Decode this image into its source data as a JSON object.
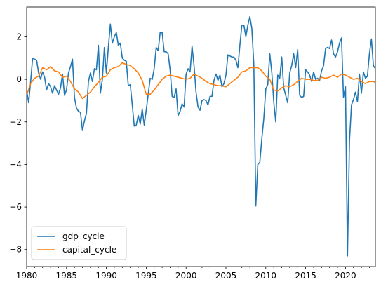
{
  "chart_data": {
    "type": "line",
    "title": "",
    "xlabel": "",
    "ylabel": "",
    "xlim": [
      1980.0,
      2023.75
    ],
    "ylim": [
      -8.8,
      3.4
    ],
    "xticks": [
      1980,
      1985,
      1990,
      1995,
      2000,
      2005,
      2010,
      2015,
      2020
    ],
    "yticks": [
      -8,
      -6,
      -4,
      -2,
      0,
      2
    ],
    "grid": false,
    "legend_position": "lower-left",
    "series": [
      {
        "name": "gdp_cycle",
        "color": "#1f77b4",
        "x": [
          1980.0,
          1980.25,
          1980.5,
          1980.75,
          1981.0,
          1981.25,
          1981.5,
          1981.75,
          1982.0,
          1982.25,
          1982.5,
          1982.75,
          1983.0,
          1983.25,
          1983.5,
          1983.75,
          1984.0,
          1984.25,
          1984.5,
          1984.75,
          1985.0,
          1985.25,
          1985.5,
          1985.75,
          1986.0,
          1986.25,
          1986.5,
          1986.75,
          1987.0,
          1987.25,
          1987.5,
          1987.75,
          1988.0,
          1988.25,
          1988.5,
          1988.75,
          1989.0,
          1989.25,
          1989.5,
          1989.75,
          1990.0,
          1990.25,
          1990.5,
          1990.75,
          1991.0,
          1991.25,
          1991.5,
          1991.75,
          1992.0,
          1992.25,
          1992.5,
          1992.75,
          1993.0,
          1993.25,
          1993.5,
          1993.75,
          1994.0,
          1994.25,
          1994.5,
          1994.75,
          1995.0,
          1995.25,
          1995.5,
          1995.75,
          1996.0,
          1996.25,
          1996.5,
          1996.75,
          1997.0,
          1997.25,
          1997.5,
          1997.75,
          1998.0,
          1998.25,
          1998.5,
          1998.75,
          1999.0,
          1999.25,
          1999.5,
          1999.75,
          2000.0,
          2000.25,
          2000.5,
          2000.75,
          2001.0,
          2001.25,
          2001.5,
          2001.75,
          2002.0,
          2002.25,
          2002.5,
          2002.75,
          2003.0,
          2003.25,
          2003.5,
          2003.75,
          2004.0,
          2004.25,
          2004.5,
          2004.75,
          2005.0,
          2005.25,
          2005.5,
          2005.75,
          2006.0,
          2006.25,
          2006.5,
          2006.75,
          2007.0,
          2007.25,
          2007.5,
          2007.75,
          2008.0,
          2008.25,
          2008.5,
          2008.75,
          2009.0,
          2009.25,
          2009.5,
          2009.75,
          2010.0,
          2010.25,
          2010.5,
          2010.75,
          2011.0,
          2011.25,
          2011.5,
          2011.75,
          2012.0,
          2012.25,
          2012.5,
          2012.75,
          2013.0,
          2013.25,
          2013.5,
          2013.75,
          2014.0,
          2014.25,
          2014.5,
          2014.75,
          2015.0,
          2015.25,
          2015.5,
          2015.75,
          2016.0,
          2016.25,
          2016.5,
          2016.75,
          2017.0,
          2017.25,
          2017.5,
          2017.75,
          2018.0,
          2018.25,
          2018.5,
          2018.75,
          2019.0,
          2019.25,
          2019.5,
          2019.75,
          2020.0,
          2020.25,
          2020.5,
          2020.75,
          2021.0,
          2021.25,
          2021.5,
          2021.75,
          2022.0,
          2022.25,
          2022.5,
          2022.75,
          2023.0,
          2023.25,
          2023.5,
          2023.75
        ],
        "values": [
          -0.5,
          -1.1,
          -0.1,
          1.0,
          0.95,
          0.9,
          0.3,
          0.0,
          0.35,
          0.1,
          -0.5,
          -0.2,
          -0.35,
          -0.65,
          -0.3,
          -0.5,
          -0.7,
          -0.4,
          0.25,
          -0.75,
          -0.5,
          0.3,
          0.6,
          0.95,
          -0.85,
          -1.35,
          -1.5,
          -1.55,
          -2.4,
          -1.95,
          -1.6,
          -0.1,
          0.3,
          -0.1,
          0.5,
          0.45,
          1.6,
          -0.65,
          0.0,
          1.5,
          0.3,
          1.5,
          2.6,
          1.7,
          2.0,
          2.2,
          1.6,
          1.7,
          1.0,
          0.9,
          0.85,
          -0.3,
          -0.25,
          -1.2,
          -2.2,
          -2.15,
          -1.7,
          -2.1,
          -1.4,
          -2.15,
          -1.45,
          -0.7,
          0.05,
          0.0,
          0.5,
          1.5,
          1.35,
          2.2,
          2.2,
          1.3,
          1.3,
          1.2,
          0.45,
          -0.8,
          -0.85,
          -0.45,
          -1.7,
          -1.5,
          -1.15,
          -1.3,
          0.25,
          0.5,
          0.35,
          1.55,
          0.65,
          -0.6,
          -1.3,
          -1.45,
          -1.0,
          -0.95,
          -1.0,
          -1.2,
          -0.8,
          -0.8,
          -0.05,
          0.25,
          -0.05,
          0.2,
          -0.35,
          -0.2,
          0.2,
          1.15,
          1.1,
          1.05,
          1.05,
          0.9,
          0.55,
          1.6,
          2.55,
          2.55,
          2.0,
          2.55,
          2.95,
          2.4,
          0.7,
          -5.95,
          -4.0,
          -3.9,
          -2.8,
          -1.85,
          -0.45,
          -0.25,
          1.2,
          0.35,
          -1.05,
          -2.0,
          0.2,
          0.05,
          1.05,
          -0.4,
          -0.75,
          -1.1,
          0.3,
          0.65,
          1.2,
          0.55,
          1.4,
          -0.75,
          -0.85,
          -0.8,
          0.45,
          0.35,
          0.2,
          -0.1,
          0.35,
          0.0,
          0.05,
          -0.05,
          0.4,
          0.65,
          1.45,
          1.5,
          1.45,
          1.85,
          1.2,
          1.05,
          1.3,
          1.7,
          1.95,
          -0.85,
          -0.35,
          -8.3,
          -2.9,
          -1.2,
          -0.95,
          -0.6,
          -1.05,
          0.25,
          -0.65,
          0.35,
          0.05,
          0.15,
          1.2,
          1.9,
          0.65,
          0.5
        ]
      },
      {
        "name": "capital_cycle",
        "color": "#ff7f0e",
        "x": [
          1980.0,
          1980.5,
          1981.0,
          1981.5,
          1982.0,
          1982.5,
          1983.0,
          1983.5,
          1984.0,
          1984.5,
          1985.0,
          1985.5,
          1986.0,
          1986.5,
          1987.0,
          1987.5,
          1988.0,
          1988.5,
          1989.0,
          1989.5,
          1990.0,
          1990.5,
          1991.0,
          1991.5,
          1992.0,
          1992.5,
          1993.0,
          1993.5,
          1994.0,
          1994.5,
          1995.0,
          1995.5,
          1996.0,
          1996.5,
          1997.0,
          1997.5,
          1998.0,
          1998.5,
          1999.0,
          1999.5,
          2000.0,
          2000.5,
          2001.0,
          2001.5,
          2002.0,
          2002.5,
          2003.0,
          2003.5,
          2004.0,
          2004.5,
          2005.0,
          2005.5,
          2006.0,
          2006.5,
          2007.0,
          2007.5,
          2008.0,
          2008.5,
          2009.0,
          2009.5,
          2010.0,
          2010.5,
          2011.0,
          2011.5,
          2012.0,
          2012.5,
          2013.0,
          2013.5,
          2014.0,
          2014.5,
          2015.0,
          2015.5,
          2016.0,
          2016.5,
          2017.0,
          2017.5,
          2018.0,
          2018.5,
          2019.0,
          2019.5,
          2020.0,
          2020.5,
          2021.0,
          2021.5,
          2022.0,
          2022.5,
          2023.0,
          2023.5,
          2023.75
        ],
        "values": [
          -0.75,
          -0.2,
          0.05,
          0.15,
          0.55,
          0.45,
          0.6,
          0.4,
          0.35,
          0.1,
          0.15,
          -0.1,
          -0.45,
          -0.6,
          -0.9,
          -0.75,
          -0.6,
          -0.35,
          -0.15,
          0.1,
          0.15,
          0.45,
          0.55,
          0.6,
          0.78,
          0.7,
          0.65,
          0.5,
          0.3,
          -0.05,
          -0.7,
          -0.7,
          -0.5,
          -0.25,
          0.0,
          0.15,
          0.2,
          0.15,
          0.1,
          0.05,
          0.0,
          0.05,
          0.25,
          0.15,
          0.05,
          -0.1,
          -0.2,
          -0.25,
          -0.3,
          -0.3,
          -0.35,
          -0.2,
          -0.05,
          0.1,
          0.35,
          0.4,
          0.55,
          0.55,
          0.55,
          0.4,
          0.15,
          0.0,
          -0.5,
          -0.55,
          -0.4,
          -0.3,
          -0.35,
          -0.25,
          -0.1,
          0.05,
          0.0,
          0.0,
          -0.05,
          -0.05,
          0.1,
          0.05,
          0.1,
          0.2,
          0.1,
          0.25,
          0.2,
          0.1,
          0.0,
          0.05,
          -0.1,
          -0.2,
          -0.1,
          -0.1,
          -0.15
        ]
      }
    ]
  }
}
